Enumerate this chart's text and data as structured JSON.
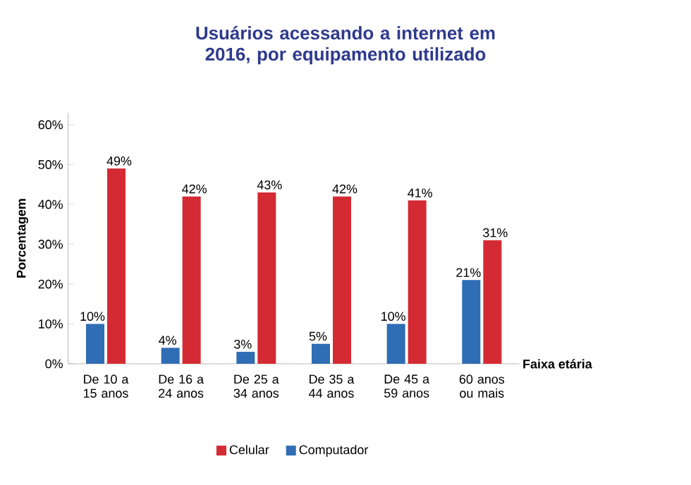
{
  "chart_data": {
    "type": "bar",
    "title": "Usuários acessando a internet em 2016, por equipamento utilizado",
    "categories": [
      "De 10 a 15 anos",
      "De 16 a 24 anos",
      "De 25 a 34 anos",
      "De 35 a 44 anos",
      "De 45 a 59 anos",
      "60 anos ou mais"
    ],
    "series": [
      {
        "name": "Computador",
        "color": "#2f6db5",
        "values": [
          10,
          4,
          3,
          5,
          10,
          21
        ],
        "value_labels": [
          "10%",
          "4%",
          "3%",
          "5%",
          "10%",
          "21%"
        ]
      },
      {
        "name": "Celular",
        "color": "#d42a34",
        "values": [
          49,
          42,
          43,
          42,
          41,
          31
        ],
        "value_labels": [
          "49%",
          "42%",
          "43%",
          "42%",
          "41%",
          "31%"
        ]
      }
    ],
    "xlabel": "Faixa etária",
    "ylabel": "Porcentagem",
    "ylim": [
      0,
      63
    ],
    "yticks": [
      {
        "value": 0,
        "label": "0%"
      },
      {
        "value": 10,
        "label": "10%"
      },
      {
        "value": 20,
        "label": "20%"
      },
      {
        "value": 30,
        "label": "30%"
      },
      {
        "value": 40,
        "label": "40%"
      },
      {
        "value": 50,
        "label": "50%"
      },
      {
        "value": 60,
        "label": "60%"
      }
    ],
    "legend": "bottom"
  }
}
